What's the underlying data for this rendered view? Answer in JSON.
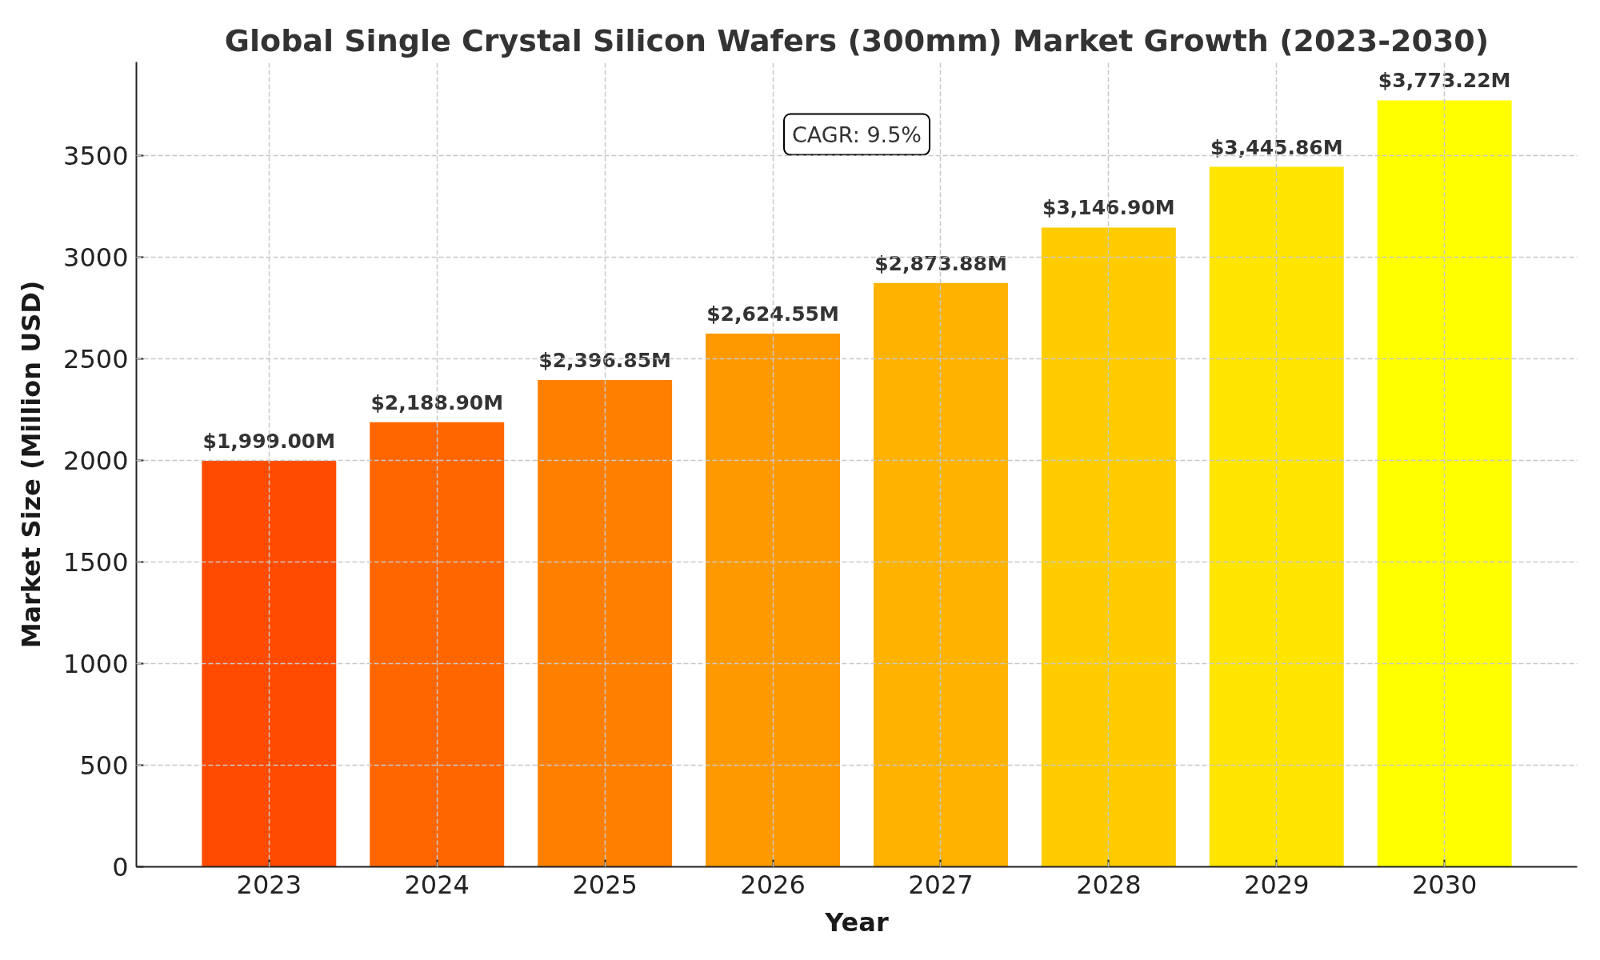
{
  "chart_data": {
    "type": "bar",
    "title": "Global Single Crystal Silicon Wafers (300mm) Market Growth (2023-2030)",
    "xlabel": "Year",
    "ylabel": "Market Size (Million USD)",
    "categories": [
      "2023",
      "2024",
      "2025",
      "2026",
      "2027",
      "2028",
      "2029",
      "2030"
    ],
    "values": [
      1999.0,
      2188.9,
      2396.85,
      2624.55,
      2873.88,
      3146.9,
      3445.86,
      3773.22
    ],
    "colors": [
      "#ff4b00",
      "#ff6600",
      "#ff8000",
      "#ff9900",
      "#ffb200",
      "#ffcc00",
      "#ffe500",
      "#ffff00"
    ],
    "value_labels": [
      "$1,999.00M",
      "$2,188.90M",
      "$2,396.85M",
      "$2,624.55M",
      "$2,873.88M",
      "$3,146.90M",
      "$3,445.86M",
      "$3,773.22M"
    ],
    "ylim": [
      0,
      3962
    ],
    "yticks": [
      0,
      500,
      1000,
      1500,
      2000,
      2500,
      3000,
      3500
    ],
    "grid": true,
    "annotations": [
      "CAGR: 9.5%"
    ]
  }
}
